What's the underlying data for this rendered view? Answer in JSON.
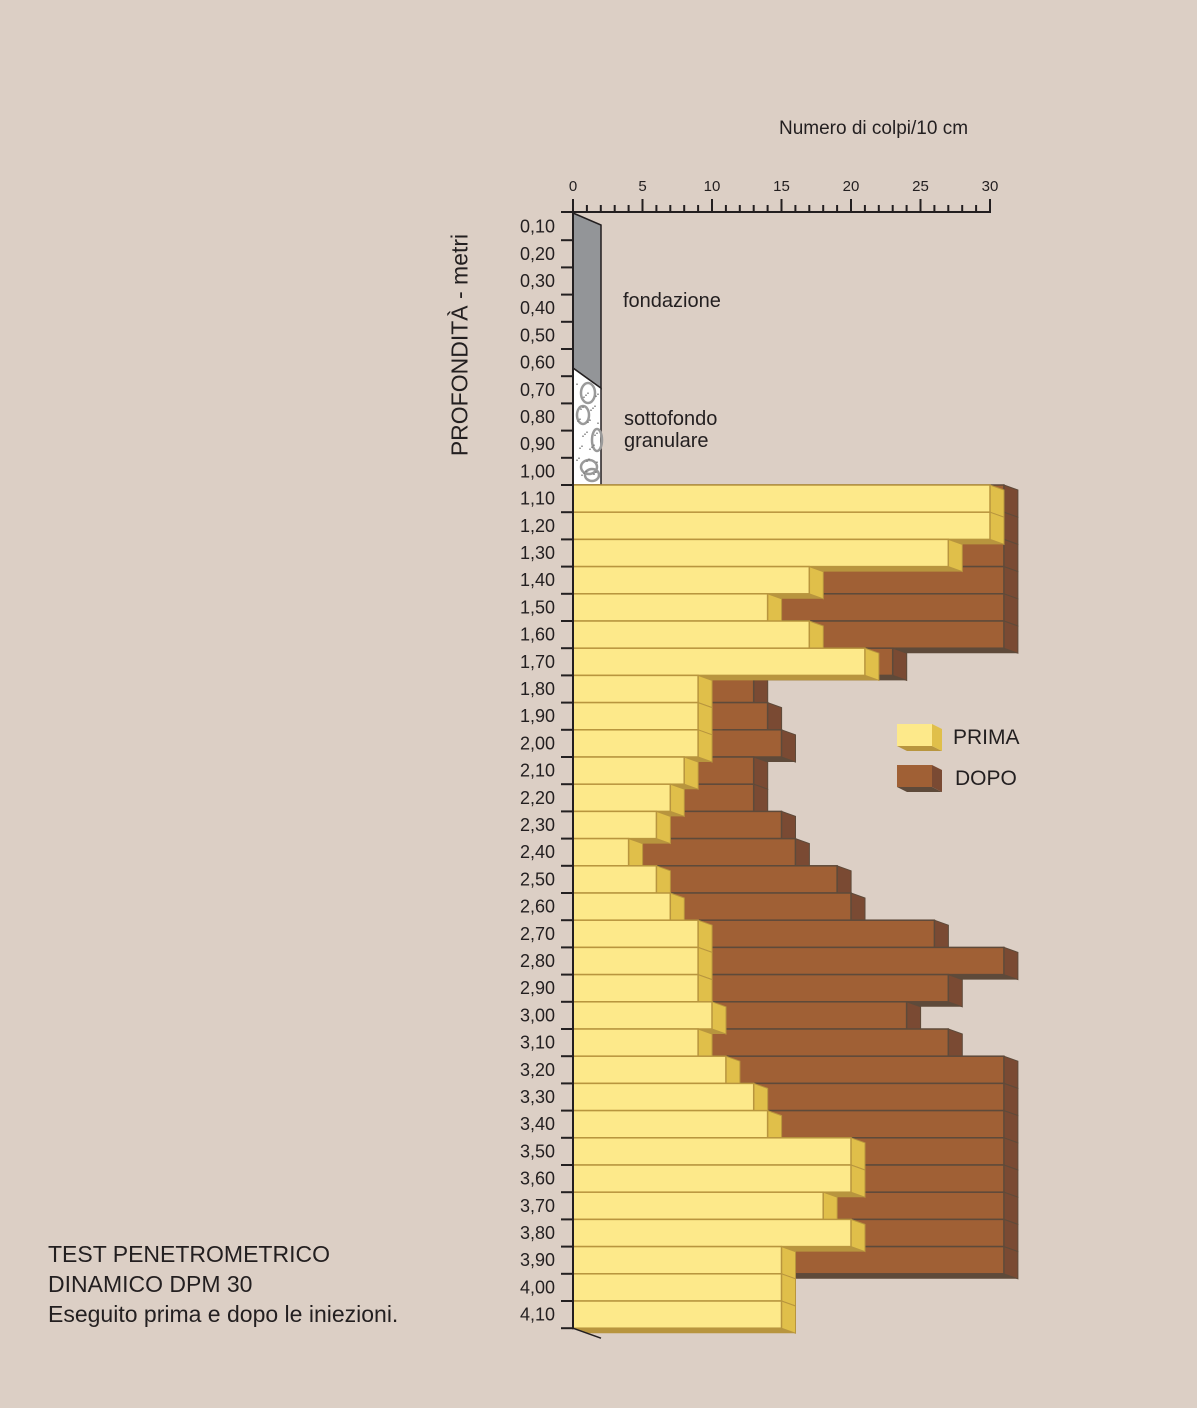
{
  "chart_data": {
    "type": "bar",
    "orientation": "horizontal",
    "xlabel": "Numero di colpi/10 cm",
    "ylabel": "PROFONDITÀ - metri",
    "xlim": [
      0,
      30
    ],
    "xticks": [
      "0",
      "5",
      "10",
      "15",
      "20",
      "25",
      "30"
    ],
    "depth_labels": [
      "0,10",
      "0,20",
      "0,30",
      "0,40",
      "0,50",
      "0,60",
      "0,70",
      "0,80",
      "0,90",
      "1,00",
      "1,10",
      "1,20",
      "1,30",
      "1,40",
      "1,50",
      "1,60",
      "1,70",
      "1,80",
      "1,90",
      "2,00",
      "2,10",
      "2,20",
      "2,30",
      "2,40",
      "2,50",
      "2,60",
      "2,70",
      "2,80",
      "2,90",
      "3,00",
      "3,10",
      "3,20",
      "3,30",
      "3,40",
      "3,50",
      "3,60",
      "3,70",
      "3,80",
      "3,90",
      "4,00",
      "4,10"
    ],
    "layers": [
      {
        "label": "fondazione",
        "from": "0,00",
        "to": "0,60"
      },
      {
        "label": "sottofondo granulare",
        "from": "0,60",
        "to": "1,00"
      }
    ],
    "categories": [
      "1,10",
      "1,20",
      "1,30",
      "1,40",
      "1,50",
      "1,60",
      "1,70",
      "1,80",
      "1,90",
      "2,00",
      "2,10",
      "2,20",
      "2,30",
      "2,40",
      "2,50",
      "2,60",
      "2,70",
      "2,80",
      "2,90",
      "3,00",
      "3,10",
      "3,20",
      "3,30",
      "3,40",
      "3,50",
      "3,60",
      "3,70",
      "3,80",
      "3,90",
      "4,00",
      "4,10"
    ],
    "series": [
      {
        "name": "PRIMA",
        "color": "#fde98a",
        "values": [
          30,
          30,
          27,
          17,
          14,
          17,
          21,
          9,
          9,
          9,
          8,
          7,
          6,
          4,
          6,
          7,
          9,
          9,
          9,
          10,
          9,
          11,
          13,
          14,
          20,
          20,
          18,
          20,
          15,
          15,
          15
        ]
      },
      {
        "name": "DOPO",
        "color": "#a06035",
        "values": [
          31,
          31,
          31,
          31,
          31,
          31,
          23,
          13,
          14,
          15,
          13,
          13,
          15,
          16,
          19,
          20,
          26,
          31,
          27,
          24,
          27,
          31,
          31,
          31,
          31,
          31,
          31,
          31,
          31,
          null,
          null
        ]
      }
    ],
    "legend": "right"
  },
  "caption": {
    "line1": "TEST PENETROMETRICO",
    "line2": "DINAMICO DPM 30",
    "line3": "Eseguito prima e dopo le iniezioni."
  }
}
